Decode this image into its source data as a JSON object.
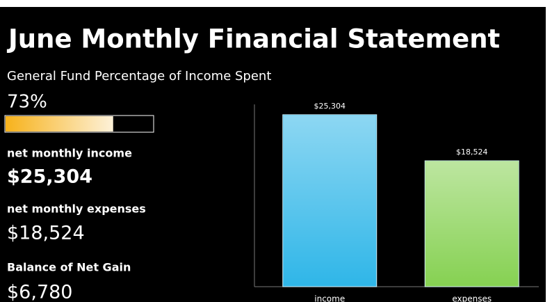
{
  "header": {
    "title": "June Monthly Financial Statement",
    "subtitle": "General Fund Percentage of Income Spent"
  },
  "spent": {
    "value": 73,
    "label": "73%"
  },
  "metrics": [
    {
      "label": "net monthly income",
      "value": "$25,304"
    },
    {
      "label": "net monthly expenses",
      "value": "$18,524"
    },
    {
      "label": "Balance of Net Gain",
      "value": "$6,780"
    }
  ],
  "chart_data": {
    "type": "bar",
    "categories": [
      "income",
      "expenses"
    ],
    "values": [
      25304,
      18524
    ],
    "value_labels": [
      "$25,304",
      "$18,524"
    ],
    "colors": [
      "#2fb6e8",
      "#86d152"
    ],
    "ylim": [
      0,
      30000
    ]
  }
}
